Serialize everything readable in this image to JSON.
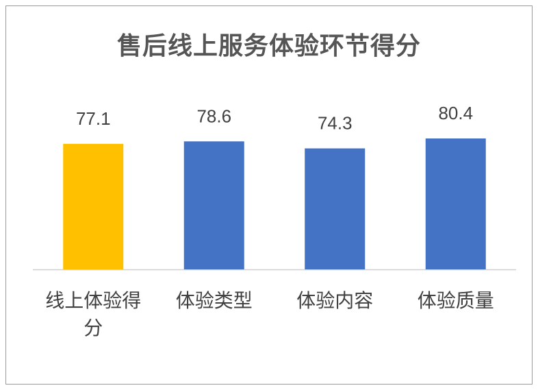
{
  "chart_data": {
    "type": "bar",
    "title": "售后线上服务体验环节得分",
    "categories": [
      "线上体验得分",
      "体验类型",
      "体验内容",
      "体验质量"
    ],
    "category_lines": [
      [
        "线上体验得",
        "分"
      ],
      [
        "体验类型"
      ],
      [
        "体验内容"
      ],
      [
        "体验质量"
      ]
    ],
    "values": [
      77.1,
      78.6,
      74.3,
      80.4
    ],
    "value_labels": [
      "77.1",
      "78.6",
      "74.3",
      "80.4"
    ],
    "colors": [
      "#FFC000",
      "#4472C4",
      "#4472C4",
      "#4472C4"
    ],
    "xlabel": "",
    "ylabel": "",
    "ylim": [
      0,
      80.4
    ],
    "grid": false,
    "legend": "none"
  }
}
